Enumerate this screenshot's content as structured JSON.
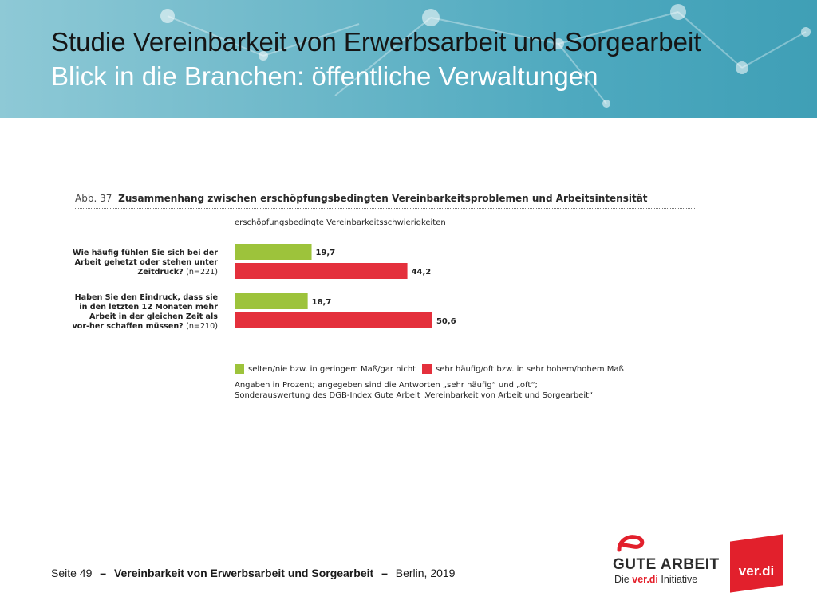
{
  "header": {
    "title_line1": "Studie Vereinbarkeit von Erwerbsarbeit und Sorgearbeit",
    "title_line2": "Blick in die Branchen: öffentliche Verwaltungen"
  },
  "figure": {
    "number": "Abb. 37",
    "title": "Zusammenhang zwischen erschöpfungsbedingten Vereinbarkeitsproblemen und Arbeitsintensität",
    "axis_title": "erschöpfungsbedingte Vereinbarkeitsschwierigkeiten",
    "questions": [
      {
        "text": "Wie häufig fühlen Sie sich bei der Arbeit gehetzt oder stehen unter Zeitdruck?",
        "n": "(n=221)"
      },
      {
        "text": "Haben Sie den Eindruck, dass sie in den letzten 12 Monaten mehr Arbeit in der gleichen Zeit als vor-her schaffen müssen?",
        "n": "(n=210)"
      }
    ],
    "note_line1": "Angaben in Prozent; angegeben sind die Antworten „sehr häufig“ und „oft“;",
    "note_line2": "Sonderauswertung des DGB-Index Gute Arbeit „Vereinbarkeit von Arbeit und Sorgearbeit“"
  },
  "chart_data": {
    "type": "bar",
    "orientation": "horizontal",
    "title": "Zusammenhang zwischen erschöpfungsbedingten Vereinbarkeitsproblemen und Arbeitsintensität",
    "xlabel": "erschöpfungsbedingte Vereinbarkeitsschwierigkeiten",
    "ylabel": "",
    "categories": [
      "Wie häufig fühlen Sie sich bei der Arbeit gehetzt oder stehen unter Zeitdruck? (n=221)",
      "Haben Sie den Eindruck, dass sie in den letzten 12 Monaten mehr Arbeit in der gleichen Zeit als vor-her schaffen müssen? (n=210)"
    ],
    "series": [
      {
        "name": "selten/nie bzw. in geringem Maß/gar nicht",
        "color": "#9dc33b",
        "values": [
          19.7,
          18.7
        ],
        "labels": [
          "19,7",
          "18,7"
        ]
      },
      {
        "name": "sehr häufig/oft bzw. in sehr hohem/hohem Maß",
        "color": "#e4303c",
        "values": [
          44.2,
          50.6
        ],
        "labels": [
          "44,2",
          "50,6"
        ]
      }
    ],
    "xlim": [
      0,
      100
    ],
    "grid": false,
    "legend_position": "bottom"
  },
  "footer": {
    "page": "Seite 49",
    "dash1": "–",
    "title": "Vereinbarkeit von Erwerbsarbeit und Sorgearbeit",
    "dash2": "–",
    "location_year": "Berlin, 2019"
  },
  "logos": {
    "gute_arbeit_word": "GUTE ARBEIT",
    "gute_arbeit_die": "Die",
    "gute_arbeit_brand": "ver.di",
    "gute_arbeit_initiative": "Initiative",
    "verdi": "ver.di",
    "accent_color": "#e2202c"
  }
}
